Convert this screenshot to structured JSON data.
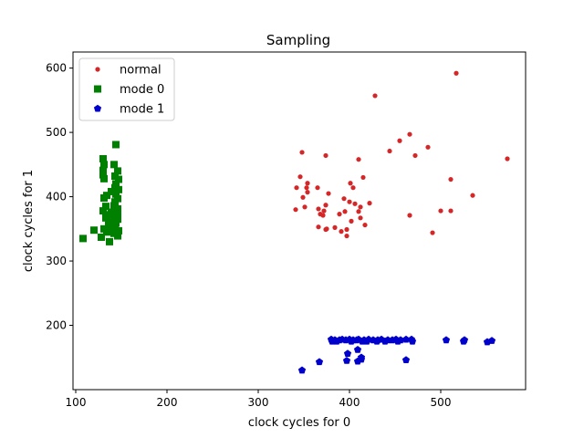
{
  "chart_data": {
    "type": "scatter",
    "title": "Sampling",
    "xlabel": "clock cycles for 0",
    "ylabel": "clock cycles for 1",
    "xlim": [
      97,
      593
    ],
    "ylim": [
      100,
      625
    ],
    "xticks": [
      100,
      200,
      300,
      400,
      500
    ],
    "yticks": [
      200,
      300,
      400,
      500,
      600
    ],
    "grid": false,
    "legend_position": "upper left",
    "series": [
      {
        "name": "normal",
        "marker": "circle",
        "color": "#d62728",
        "points": [
          [
            517,
            592
          ],
          [
            428,
            557
          ],
          [
            573,
            459
          ],
          [
            466,
            497
          ],
          [
            455,
            487
          ],
          [
            486,
            477
          ],
          [
            444,
            471
          ],
          [
            348,
            469
          ],
          [
            374,
            464
          ],
          [
            472,
            464
          ],
          [
            410,
            458
          ],
          [
            346,
            431
          ],
          [
            415,
            430
          ],
          [
            511,
            427
          ],
          [
            354,
            421
          ],
          [
            401,
            421
          ],
          [
            342,
            414
          ],
          [
            353,
            414
          ],
          [
            365,
            414
          ],
          [
            404,
            414
          ],
          [
            354,
            407
          ],
          [
            377,
            405
          ],
          [
            535,
            402
          ],
          [
            349,
            399
          ],
          [
            394,
            397
          ],
          [
            400,
            392
          ],
          [
            422,
            390
          ],
          [
            406,
            389
          ],
          [
            374,
            387
          ],
          [
            351,
            384
          ],
          [
            412,
            384
          ],
          [
            366,
            381
          ],
          [
            341,
            380
          ],
          [
            372,
            378
          ],
          [
            500,
            378
          ],
          [
            511,
            378
          ],
          [
            395,
            377
          ],
          [
            410,
            377
          ],
          [
            368,
            373
          ],
          [
            389,
            373
          ],
          [
            371,
            371
          ],
          [
            466,
            371
          ],
          [
            412,
            367
          ],
          [
            402,
            362
          ],
          [
            417,
            356
          ],
          [
            366,
            353
          ],
          [
            384,
            352
          ],
          [
            375,
            350
          ],
          [
            374,
            349
          ],
          [
            397,
            349
          ],
          [
            391,
            346
          ],
          [
            491,
            344
          ],
          [
            397,
            339
          ]
        ]
      },
      {
        "name": "mode 0",
        "marker": "square",
        "color": "#008000",
        "points": [
          [
            144,
            481
          ],
          [
            130,
            459
          ],
          [
            131,
            450
          ],
          [
            142,
            450
          ],
          [
            130,
            441
          ],
          [
            146,
            440
          ],
          [
            130,
            434
          ],
          [
            143,
            432
          ],
          [
            131,
            428
          ],
          [
            147,
            427
          ],
          [
            144,
            420
          ],
          [
            143,
            414
          ],
          [
            147,
            411
          ],
          [
            139,
            408
          ],
          [
            144,
            404
          ],
          [
            134,
            402
          ],
          [
            131,
            398
          ],
          [
            146,
            397
          ],
          [
            143,
            392
          ],
          [
            142,
            386
          ],
          [
            133,
            385
          ],
          [
            146,
            381
          ],
          [
            130,
            378
          ],
          [
            139,
            376
          ],
          [
            146,
            375
          ],
          [
            135,
            372
          ],
          [
            142,
            370
          ],
          [
            133,
            367
          ],
          [
            146,
            365
          ],
          [
            137,
            361
          ],
          [
            144,
            359
          ],
          [
            136,
            356
          ],
          [
            143,
            354
          ],
          [
            131,
            350
          ],
          [
            139,
            351
          ],
          [
            120,
            348
          ],
          [
            147,
            347
          ],
          [
            134,
            345
          ],
          [
            142,
            343
          ],
          [
            128,
            337
          ],
          [
            146,
            339
          ],
          [
            108,
            335
          ],
          [
            137,
            330
          ]
        ]
      },
      {
        "name": "mode 1",
        "marker": "pentagon",
        "color": "#0000cc",
        "points": [
          [
            380,
            178
          ],
          [
            392,
            178
          ],
          [
            400,
            178
          ],
          [
            410,
            178
          ],
          [
            421,
            178
          ],
          [
            435,
            178
          ],
          [
            451,
            178
          ],
          [
            462,
            178
          ],
          [
            468,
            178
          ],
          [
            384,
            177
          ],
          [
            389,
            177
          ],
          [
            396,
            177
          ],
          [
            404,
            177
          ],
          [
            408,
            177
          ],
          [
            416,
            177
          ],
          [
            426,
            177
          ],
          [
            431,
            177
          ],
          [
            442,
            177
          ],
          [
            447,
            177
          ],
          [
            456,
            177
          ],
          [
            506,
            177
          ],
          [
            526,
            177
          ],
          [
            556,
            176
          ],
          [
            381,
            175
          ],
          [
            386,
            175
          ],
          [
            402,
            175
          ],
          [
            414,
            175
          ],
          [
            419,
            175
          ],
          [
            430,
            175
          ],
          [
            439,
            175
          ],
          [
            453,
            175
          ],
          [
            469,
            175
          ],
          [
            525,
            175
          ],
          [
            551,
            174
          ],
          [
            409,
            162
          ],
          [
            398,
            156
          ],
          [
            413,
            150
          ],
          [
            413,
            147
          ],
          [
            462,
            146
          ],
          [
            397,
            145
          ],
          [
            409,
            144
          ],
          [
            367,
            143
          ],
          [
            348,
            130
          ]
        ]
      }
    ]
  }
}
